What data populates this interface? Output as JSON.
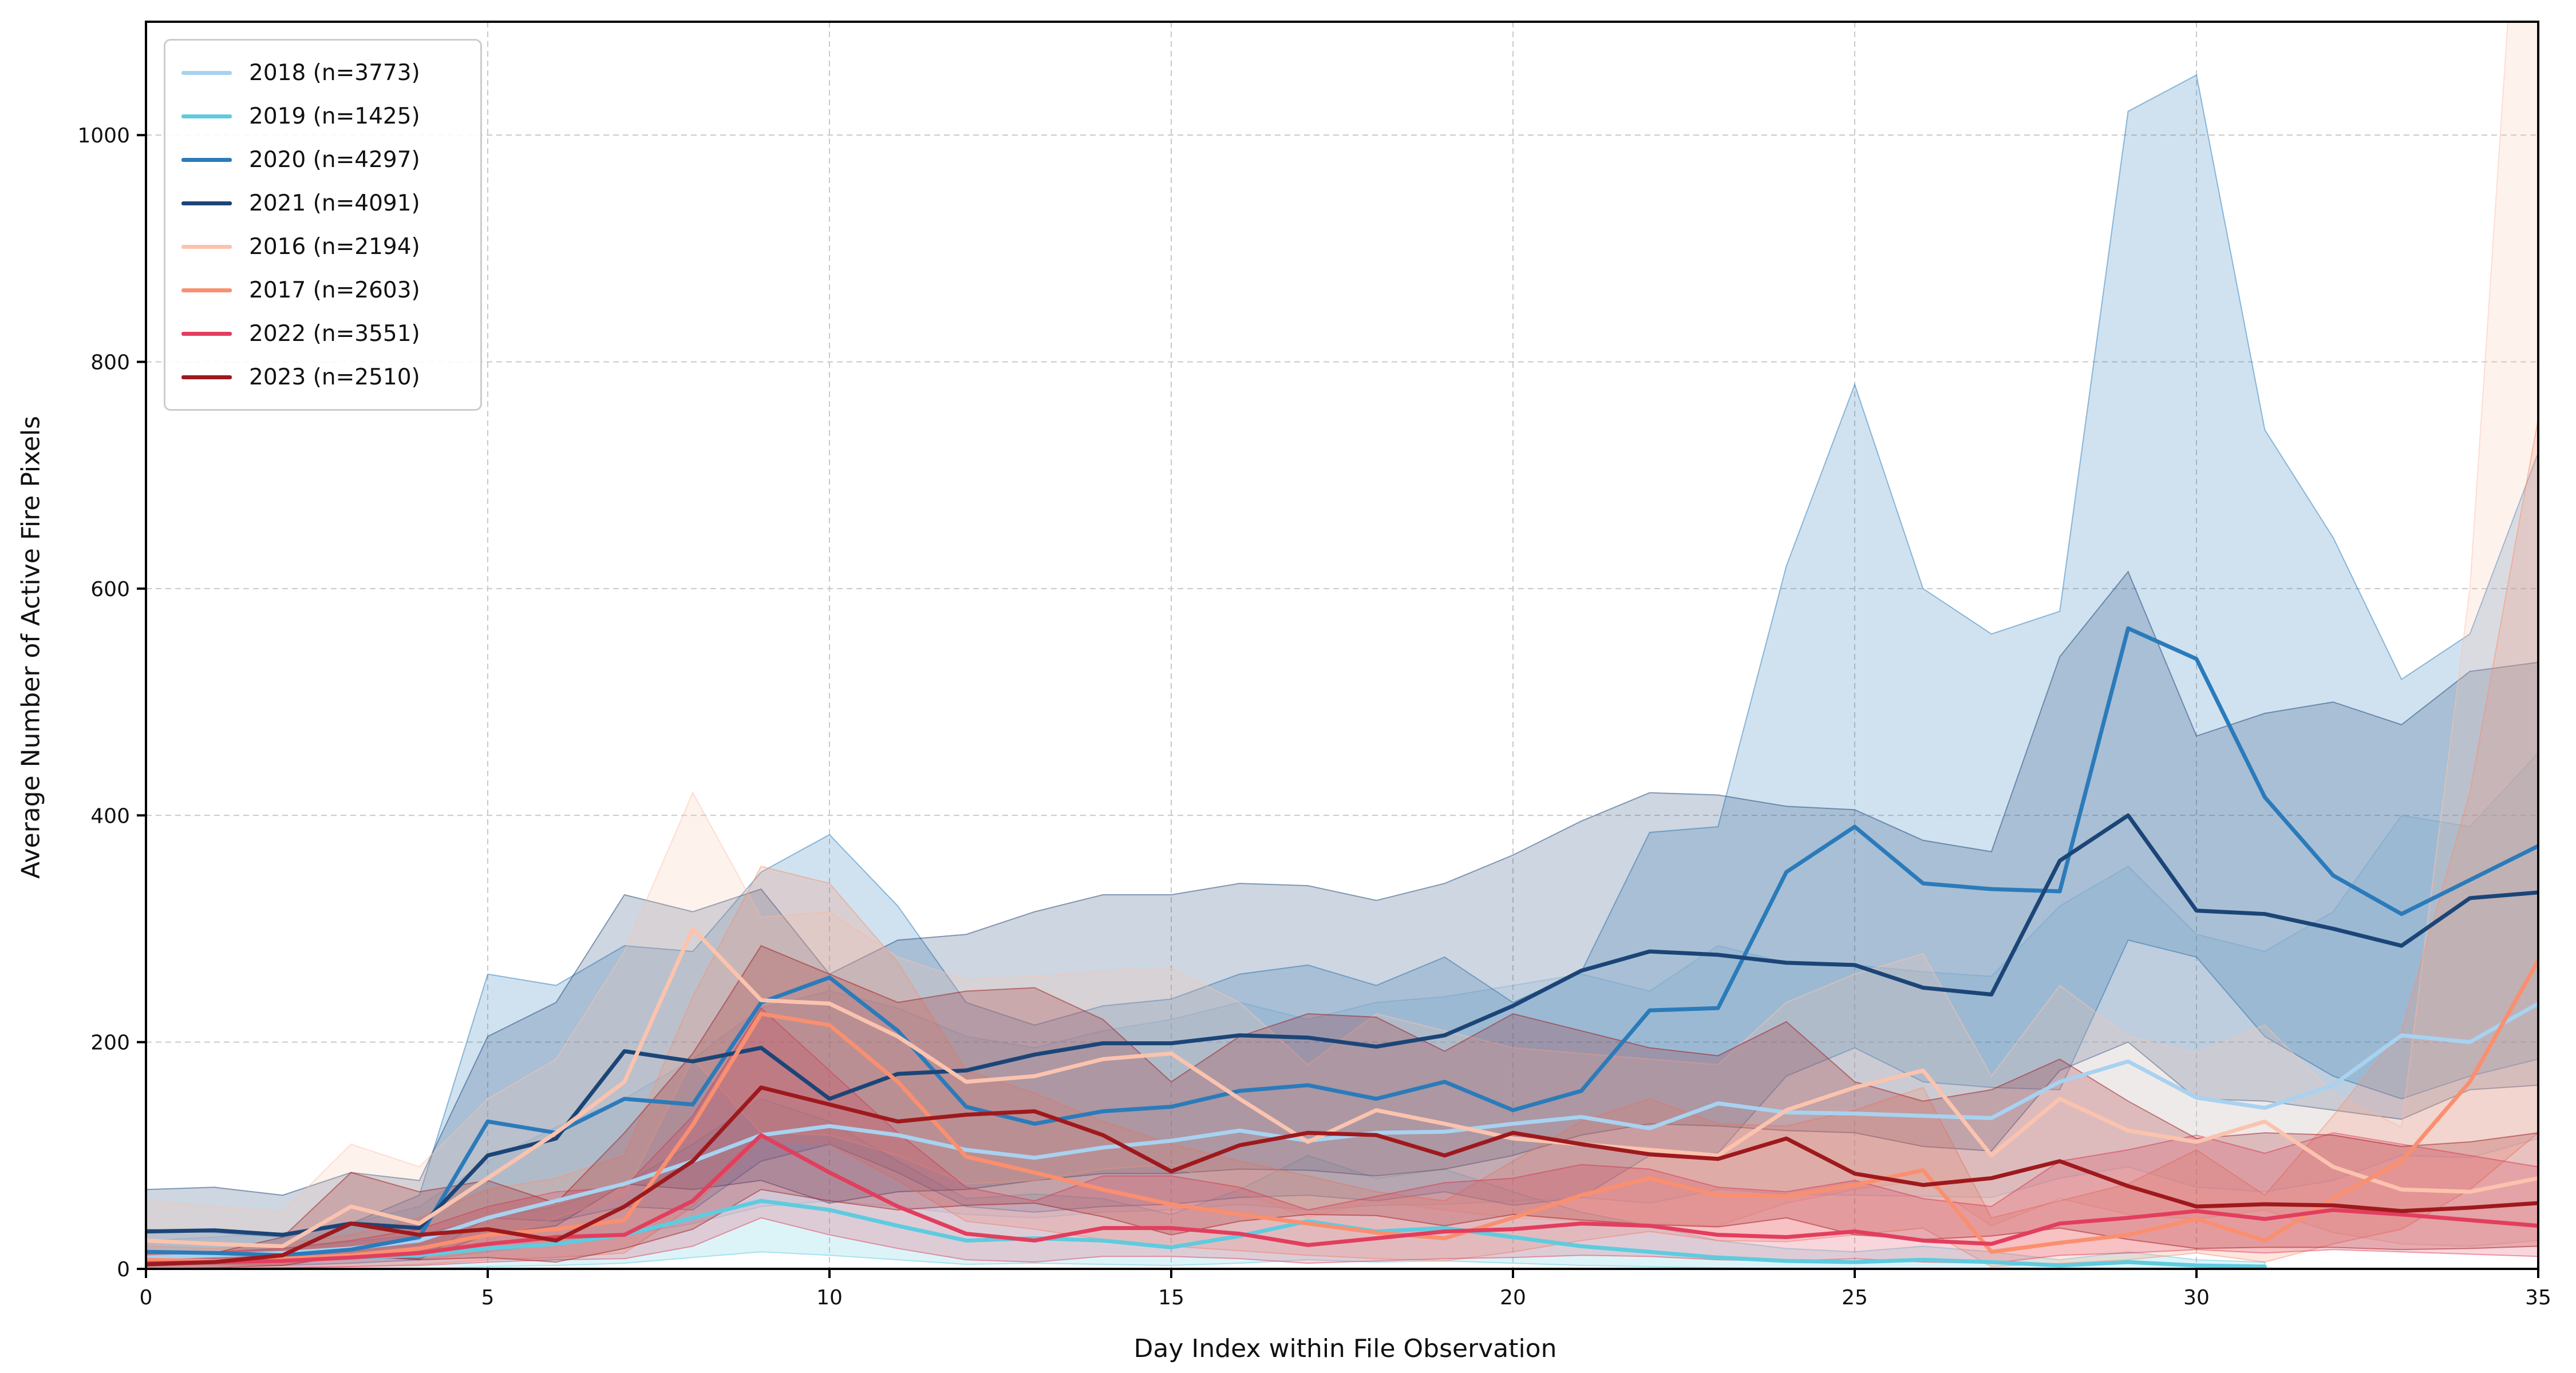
{
  "figure": {
    "x_label": "Day Index within File Observation",
    "y_label": "Average Number of Active Fire Pixels"
  },
  "axes": {
    "xlim": [
      0,
      35
    ],
    "ylim": [
      0,
      1100
    ],
    "x_ticks": [
      0,
      5,
      10,
      15,
      20,
      25,
      30,
      35
    ],
    "y_ticks": [
      0,
      200,
      400,
      600,
      800,
      1000
    ],
    "grid_color": "#c9c9c9",
    "spine_color": "#000000",
    "tick_label_color": "#111111"
  },
  "chart_data": {
    "type": "line",
    "title": "",
    "xlabel": "Day Index within File Observation",
    "ylabel": "Average Number of Active Fire Pixels",
    "grid": true,
    "legend_position": "upper left",
    "band_alpha": 0.22,
    "x": [
      0,
      1,
      2,
      3,
      4,
      5,
      6,
      7,
      8,
      9,
      10,
      11,
      12,
      13,
      14,
      15,
      16,
      17,
      18,
      19,
      20,
      21,
      22,
      23,
      24,
      25,
      26,
      27,
      28,
      29,
      30,
      31,
      32,
      33,
      34,
      35
    ],
    "series": [
      {
        "name": "2018",
        "label": "2018 (n=3773)",
        "color": "#a8d2f0",
        "mean": [
          10,
          12,
          14,
          18,
          25,
          45,
          60,
          75,
          95,
          118,
          126,
          118,
          105,
          98,
          107,
          113,
          122,
          113,
          120,
          121,
          128,
          134,
          124,
          146,
          138,
          137,
          135,
          133,
          165,
          183,
          151,
          142,
          162,
          206,
          200,
          234
        ],
        "lo": [
          2,
          3,
          4,
          5,
          8,
          15,
          22,
          30,
          40,
          55,
          60,
          55,
          48,
          45,
          50,
          52,
          57,
          52,
          56,
          57,
          60,
          63,
          58,
          70,
          66,
          65,
          64,
          63,
          80,
          90,
          72,
          68,
          78,
          100,
          98,
          115
        ],
        "hi": [
          25,
          28,
          32,
          40,
          55,
          95,
          125,
          150,
          185,
          230,
          245,
          230,
          205,
          195,
          210,
          220,
          235,
          220,
          235,
          240,
          250,
          260,
          245,
          285,
          270,
          268,
          262,
          258,
          320,
          355,
          295,
          280,
          315,
          400,
          390,
          455
        ]
      },
      {
        "name": "2019",
        "label": "2019 (n=1425)",
        "color": "#5fcbdf",
        "mean": [
          5,
          6,
          8,
          10,
          12,
          18,
          22,
          30,
          45,
          60,
          52,
          38,
          25,
          27,
          25,
          19,
          29,
          42,
          33,
          36,
          28,
          20,
          15,
          10,
          7,
          6,
          8,
          6,
          3,
          6,
          3,
          2,
          null,
          null,
          null,
          null
        ],
        "lo": [
          0,
          0,
          0,
          0,
          0,
          2,
          3,
          5,
          10,
          15,
          12,
          8,
          4,
          5,
          4,
          3,
          5,
          8,
          6,
          7,
          5,
          3,
          2,
          1,
          0,
          0,
          0,
          0,
          0,
          0,
          0,
          0,
          null,
          null,
          null,
          null
        ],
        "hi": [
          12,
          14,
          18,
          24,
          30,
          45,
          55,
          75,
          110,
          150,
          130,
          95,
          62,
          66,
          62,
          48,
          70,
          100,
          80,
          88,
          68,
          50,
          38,
          25,
          18,
          15,
          20,
          15,
          8,
          15,
          8,
          6,
          null,
          null,
          null,
          null
        ]
      },
      {
        "name": "2020",
        "label": "2020 (n=4297)",
        "color": "#2b7bba",
        "mean": [
          15,
          14,
          12,
          17,
          28,
          130,
          120,
          150,
          145,
          235,
          257,
          210,
          143,
          128,
          139,
          143,
          157,
          162,
          150,
          165,
          140,
          157,
          228,
          230,
          350,
          390,
          340,
          335,
          333,
          565,
          538,
          416,
          347,
          313,
          343,
          373
        ],
        "lo": [
          4,
          4,
          3,
          5,
          8,
          45,
          42,
          55,
          52,
          95,
          110,
          85,
          55,
          50,
          55,
          57,
          63,
          65,
          60,
          68,
          56,
          63,
          100,
          102,
          170,
          195,
          165,
          160,
          158,
          290,
          275,
          205,
          170,
          150,
          170,
          185
        ],
        "hi": [
          35,
          32,
          28,
          40,
          65,
          260,
          250,
          285,
          280,
          350,
          383,
          320,
          235,
          215,
          232,
          238,
          260,
          268,
          250,
          275,
          235,
          262,
          385,
          390,
          620,
          780,
          600,
          560,
          580,
          1021,
          1053,
          740,
          645,
          520,
          560,
          720
        ]
      },
      {
        "name": "2021",
        "label": "2021 (n=4091)",
        "color": "#1c4577",
        "mean": [
          33,
          34,
          30,
          40,
          36,
          100,
          115,
          192,
          183,
          195,
          150,
          172,
          175,
          189,
          199,
          199,
          206,
          204,
          196,
          206,
          232,
          263,
          280,
          277,
          270,
          268,
          248,
          242,
          360,
          400,
          316,
          313,
          300,
          285,
          327,
          332
        ],
        "lo": [
          8,
          9,
          8,
          10,
          9,
          30,
          38,
          75,
          70,
          78,
          58,
          68,
          70,
          78,
          84,
          84,
          88,
          87,
          82,
          88,
          100,
          118,
          128,
          126,
          122,
          120,
          108,
          104,
          175,
          200,
          150,
          148,
          140,
          132,
          158,
          162
        ],
        "hi": [
          70,
          72,
          65,
          85,
          78,
          205,
          235,
          330,
          315,
          335,
          260,
          290,
          295,
          315,
          330,
          330,
          340,
          338,
          325,
          340,
          365,
          395,
          420,
          418,
          408,
          405,
          378,
          368,
          540,
          615,
          470,
          490,
          500,
          480,
          527,
          535
        ]
      },
      {
        "name": "2016",
        "label": "2016 (n=2194)",
        "color": "#fbc3ae",
        "mean": [
          25,
          22,
          20,
          55,
          40,
          80,
          120,
          165,
          300,
          237,
          234,
          205,
          165,
          170,
          185,
          190,
          150,
          112,
          140,
          128,
          115,
          110,
          105,
          100,
          140,
          160,
          175,
          100,
          150,
          122,
          112,
          130,
          90,
          70,
          68,
          80
        ],
        "lo": [
          5,
          4,
          4,
          15,
          10,
          25,
          45,
          65,
          185,
          120,
          118,
          100,
          75,
          78,
          88,
          92,
          68,
          45,
          60,
          52,
          45,
          42,
          40,
          38,
          58,
          70,
          78,
          38,
          62,
          48,
          44,
          52,
          32,
          22,
          20,
          25
        ],
        "hi": [
          60,
          55,
          50,
          110,
          90,
          150,
          185,
          280,
          420,
          310,
          315,
          275,
          255,
          258,
          262,
          265,
          235,
          180,
          225,
          210,
          195,
          190,
          185,
          180,
          235,
          260,
          278,
          170,
          250,
          205,
          190,
          215,
          155,
          125,
          600,
          1500
        ]
      },
      {
        "name": "2017",
        "label": "2017 (n=2603)",
        "color": "#fa8f6f",
        "mean": [
          8,
          7,
          9,
          12,
          18,
          30,
          35,
          43,
          127,
          225,
          215,
          165,
          99,
          85,
          70,
          57,
          48,
          40,
          32,
          27,
          45,
          65,
          80,
          65,
          64,
          74,
          87,
          15,
          23,
          30,
          44,
          25,
          62,
          95,
          165,
          272
        ],
        "lo": [
          0,
          0,
          1,
          2,
          4,
          8,
          10,
          14,
          55,
          115,
          110,
          78,
          42,
          35,
          26,
          20,
          16,
          12,
          9,
          7,
          15,
          25,
          33,
          25,
          24,
          30,
          36,
          2,
          5,
          8,
          14,
          6,
          22,
          35,
          70,
          120
        ],
        "hi": [
          20,
          18,
          22,
          30,
          45,
          70,
          80,
          100,
          240,
          355,
          340,
          270,
          175,
          155,
          130,
          110,
          95,
          82,
          68,
          60,
          95,
          130,
          150,
          128,
          126,
          140,
          160,
          45,
          60,
          75,
          105,
          65,
          135,
          210,
          420,
          750
        ]
      },
      {
        "name": "2022",
        "label": "2022 (n=3551)",
        "color": "#e23e5e",
        "mean": [
          5,
          6,
          7,
          10,
          14,
          22,
          28,
          30,
          60,
          118,
          85,
          55,
          31,
          25,
          36,
          36,
          31,
          21,
          27,
          33,
          35,
          40,
          38,
          30,
          28,
          33,
          25,
          22,
          40,
          45,
          51,
          44,
          52,
          48,
          43,
          38
        ],
        "lo": [
          0,
          0,
          1,
          2,
          3,
          6,
          8,
          9,
          20,
          45,
          30,
          18,
          8,
          6,
          11,
          11,
          9,
          5,
          7,
          9,
          10,
          12,
          11,
          8,
          7,
          9,
          6,
          5,
          12,
          14,
          17,
          14,
          17,
          15,
          13,
          11
        ],
        "hi": [
          13,
          15,
          18,
          25,
          35,
          55,
          68,
          72,
          135,
          230,
          175,
          120,
          72,
          60,
          82,
          82,
          72,
          52,
          64,
          76,
          80,
          92,
          88,
          72,
          68,
          78,
          62,
          55,
          95,
          105,
          118,
          102,
          120,
          110,
          100,
          90
        ]
      },
      {
        "name": "2023",
        "label": "2023 (n=2510)",
        "color": "#9e191d",
        "mean": [
          4,
          6,
          12,
          40,
          30,
          35,
          25,
          55,
          95,
          160,
          145,
          130,
          136,
          139,
          118,
          86,
          109,
          120,
          118,
          100,
          120,
          110,
          101,
          97,
          115,
          84,
          74,
          80,
          95,
          73,
          55,
          57,
          56,
          51,
          54,
          58
        ],
        "lo": [
          0,
          1,
          3,
          12,
          8,
          10,
          6,
          18,
          35,
          70,
          60,
          52,
          56,
          58,
          46,
          30,
          42,
          48,
          47,
          38,
          48,
          43,
          39,
          37,
          45,
          30,
          26,
          29,
          36,
          26,
          18,
          19,
          19,
          17,
          18,
          20
        ],
        "hi": [
          10,
          14,
          28,
          85,
          68,
          78,
          58,
          120,
          190,
          285,
          260,
          235,
          245,
          248,
          220,
          165,
          205,
          225,
          222,
          192,
          225,
          210,
          195,
          188,
          218,
          165,
          148,
          158,
          185,
          148,
          115,
          120,
          118,
          108,
          112,
          120
        ]
      }
    ]
  }
}
